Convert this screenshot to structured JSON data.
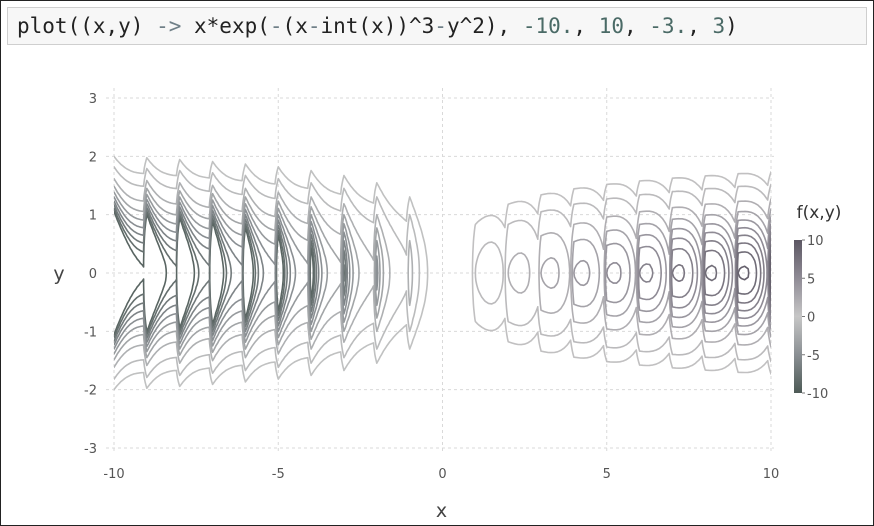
{
  "code": {
    "parts": [
      {
        "text": "plot((x,y) ",
        "cls": ""
      },
      {
        "text": "->",
        "cls": "op"
      },
      {
        "text": " x*exp(",
        "cls": ""
      },
      {
        "text": "-",
        "cls": "op"
      },
      {
        "text": "(x",
        "cls": ""
      },
      {
        "text": "-",
        "cls": "op"
      },
      {
        "text": "int(x))^3",
        "cls": ""
      },
      {
        "text": "-",
        "cls": "op"
      },
      {
        "text": "y^2), ",
        "cls": ""
      },
      {
        "text": "-10.",
        "cls": "num"
      },
      {
        "text": ", ",
        "cls": ""
      },
      {
        "text": "10",
        "cls": "num"
      },
      {
        "text": ", ",
        "cls": ""
      },
      {
        "text": "-3.",
        "cls": "num"
      },
      {
        "text": ", ",
        "cls": ""
      },
      {
        "text": "3",
        "cls": "num"
      },
      {
        "text": ")",
        "cls": ""
      }
    ]
  },
  "chart_data": {
    "type": "contour",
    "function": "x*exp(-(x-int(x))^3-y^2)",
    "xlabel": "x",
    "ylabel": "y",
    "xlim": [
      -10,
      10
    ],
    "ylim": [
      -3,
      3
    ],
    "xticks": [
      -10,
      -5,
      0,
      5,
      10
    ],
    "yticks": [
      -3,
      -2,
      -1,
      0,
      1,
      2,
      3
    ],
    "grid": true,
    "colorbar": {
      "title": "f(x,y)",
      "range": [
        -10,
        10
      ],
      "ticks": [
        10,
        5,
        0,
        -5,
        -10
      ],
      "colors": [
        "#4d5a56",
        "#8a8f93",
        "#c6c6c6",
        "#8f8b95",
        "#5c5763"
      ]
    },
    "contour_levels": [
      -9,
      -8,
      -7,
      -6,
      -5,
      -4,
      -3,
      -2,
      -1,
      -0.5,
      0.5,
      1,
      2,
      3,
      4,
      5,
      6,
      7,
      8,
      9
    ]
  }
}
